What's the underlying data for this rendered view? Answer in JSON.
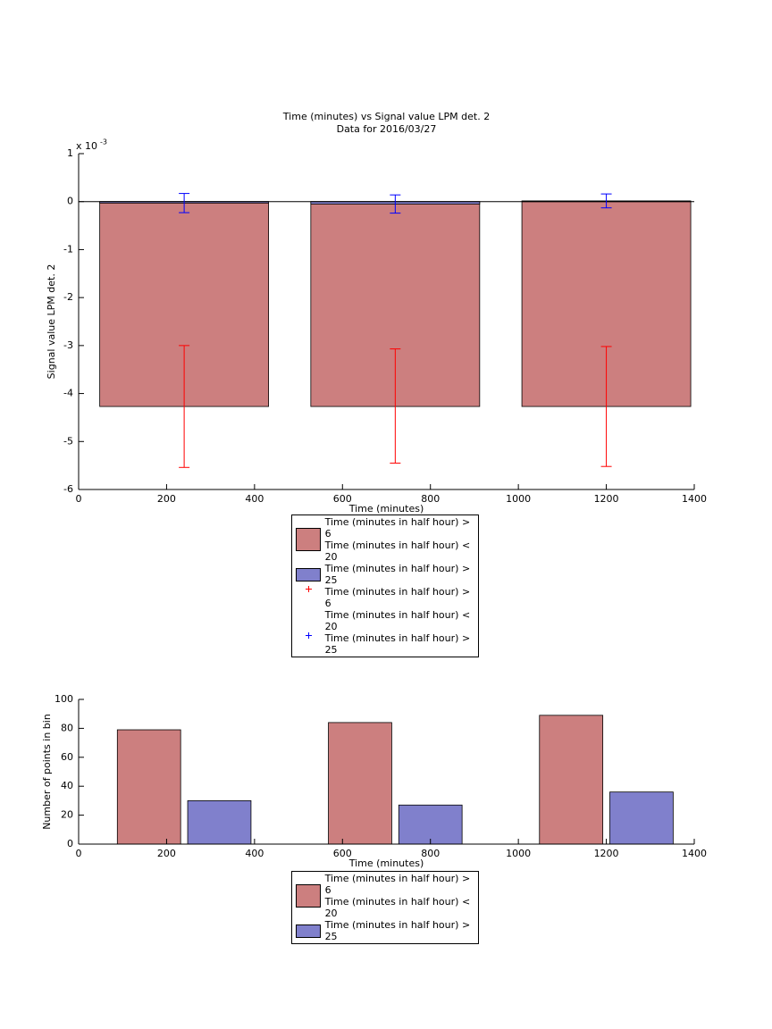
{
  "chart_data": [
    {
      "type": "bar",
      "barmode": "overlay",
      "title": "Time (minutes) vs Signal value LPM det. 2",
      "subtitle": "Data for 2016/03/27",
      "x_label": "Time (minutes)",
      "y_label": "Signal value LPM det. 2",
      "y_exponent": {
        "base": "x 10",
        "power": "-3"
      },
      "x": [
        240,
        720,
        1200
      ],
      "series": [
        {
          "name": "Time (minutes in half hour) > 6\nTime (minutes in half hour) < 20",
          "color": "#cc7f7f",
          "values": [
            -4.27,
            -4.27,
            -4.27
          ]
        },
        {
          "name": "Time (minutes in half hour) > 25",
          "color": "#8080cc",
          "values": [
            -0.03,
            -0.05,
            0.015
          ]
        }
      ],
      "errorbars": [
        {
          "name": "Time (minutes in half hour) > 6\nTime (minutes in half hour) < 20",
          "color": "#ff0000",
          "values": [
            -4.27,
            -4.26,
            -4.27
          ],
          "errors": [
            1.27,
            1.19,
            1.25
          ]
        },
        {
          "name": "Time (minutes in half hour) > 25",
          "color": "#0000ff",
          "values": [
            -0.03,
            -0.05,
            0.015
          ],
          "errors": [
            0.2,
            0.19,
            0.145
          ]
        }
      ],
      "xlim": [
        0,
        1400
      ],
      "xticks": [
        0,
        200,
        400,
        600,
        800,
        1000,
        1200,
        1400
      ],
      "ylim": [
        -6,
        1
      ],
      "yticks": [
        -6,
        -5,
        -4,
        -3,
        -2,
        -1,
        0,
        1
      ]
    },
    {
      "type": "bar",
      "barmode": "group",
      "x_label": "Time (minutes)",
      "y_label": "Number of points in bin",
      "x": [
        240,
        720,
        1200
      ],
      "series": [
        {
          "name": "Time (minutes in half hour) > 6\nTime (minutes in half hour) < 20",
          "color": "#cc7f7f",
          "values": [
            79,
            84,
            89
          ]
        },
        {
          "name": "Time (minutes in half hour) > 25",
          "color": "#8080cc",
          "values": [
            30,
            27,
            36
          ]
        }
      ],
      "xlim": [
        0,
        1400
      ],
      "xticks": [
        0,
        200,
        400,
        600,
        800,
        1000,
        1200,
        1400
      ],
      "ylim": [
        0,
        100
      ],
      "yticks": [
        0,
        20,
        40,
        60,
        80,
        100
      ]
    }
  ]
}
